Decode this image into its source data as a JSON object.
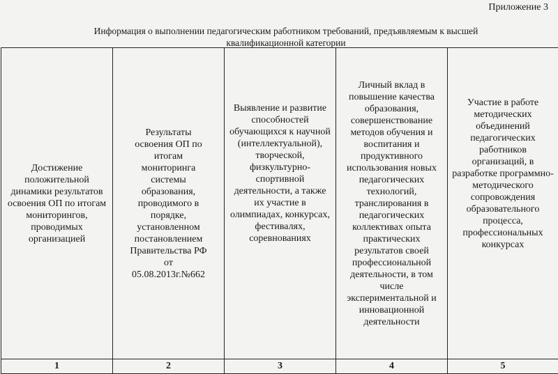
{
  "header": {
    "appendix": "Приложение 3",
    "title": "Информация о выполнении педагогическим работником требований, предъявляемым  к высшей\nквалификационной категории"
  },
  "table": {
    "columns": [
      "Достижение положительной\nдинамики результатов\nосвоения ОП по итогам\nмониторингов, проводимых\nорганизацией",
      "Результаты\nосвоения ОП по\nитогам\nмониторинга\nсистемы\nобразования,\nпроводимого в\nпорядке,\nустановленном\nпостановлением\nПравительства РФ\nот\n05.08.2013г.№662",
      "Выявление и развитие\nспособностей\nобучающихся к научной\n(интеллектуальной),\nтворческой,\nфизкультурно-\nспортивной\nдеятельности, а также\nих участие в\nолимпиадах, конкурсах,\nфестивалях,\nсоревнованиях",
      "Личный вклад в\nповышение качества\nобразования,\nсовершенствование\nметодов обучения и\nвоспитания и\nпродуктивного\nиспользования новых\nпедагогических\nтехнологий,\nтранслирования в\nпедагогических\nколлективах опыта\nпрактических\nрезультатов своей\nпрофессиональной\nдеятельности, в том\nчисле\nэкспериментальной и\nинновационной\nдеятельности",
      "Участие в работе\nметодических\nобъединений\nпедагогических\nработников\nорганизаций, в\nразработке программно-\nметодического\nсопровождения\nобразовательного\nпроцесса,\nпрофессиональных\nконкурсах"
    ],
    "numbers": [
      "1",
      "2",
      "3",
      "4",
      "5"
    ]
  }
}
